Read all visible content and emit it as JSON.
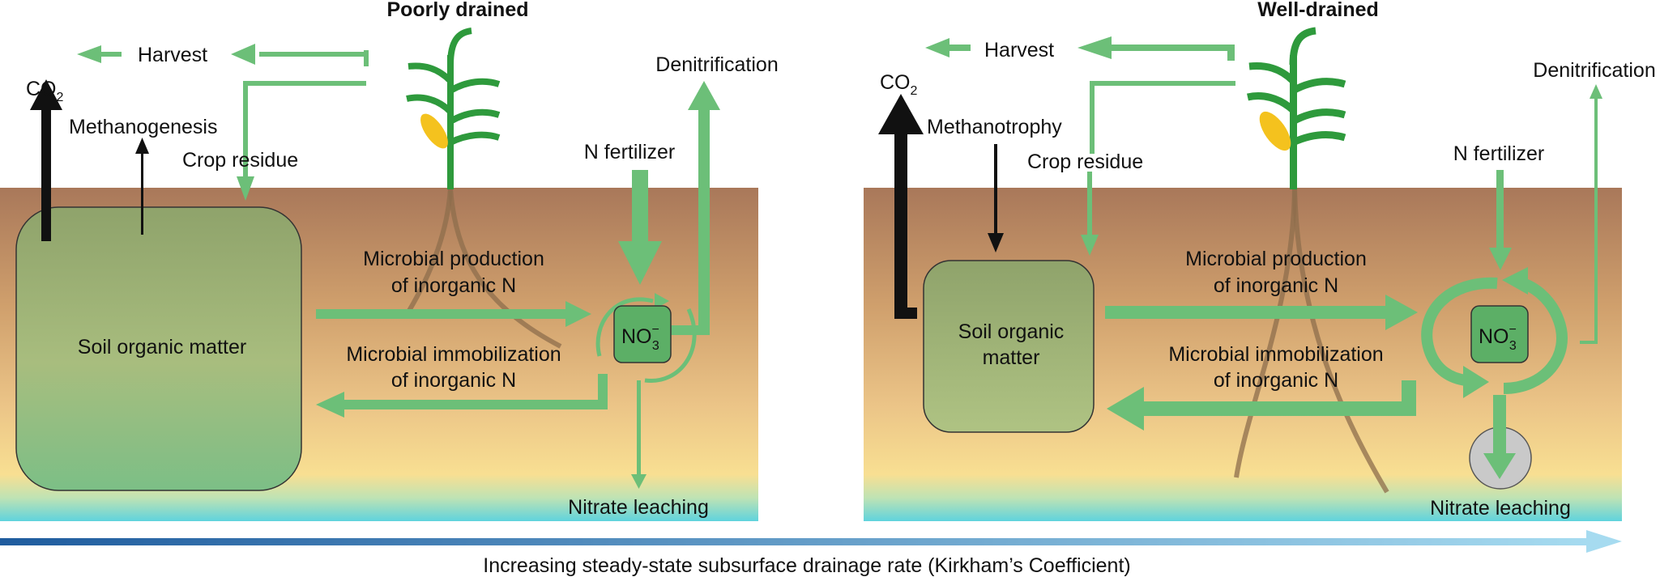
{
  "left_panel": {
    "title": "Poorly drained",
    "harvest": "Harvest",
    "co2": "CO",
    "co2_sub": "2",
    "process": "Methanogenesis",
    "crop_residue": "Crop residue",
    "denitrification": "Denitrification",
    "n_fertilizer": "N fertilizer",
    "soil_organic_matter": "Soil organic matter",
    "microbial_production": [
      "Microbial production",
      "of inorganic N"
    ],
    "microbial_immobilization": [
      "Microbial immobilization",
      "of inorganic N"
    ],
    "nitrate": "NO",
    "nitrate_sub": "3",
    "nitrate_sup": "−",
    "nitrate_leaching": "Nitrate leaching"
  },
  "right_panel": {
    "title": "Well-drained",
    "harvest": "Harvest",
    "co2": "CO",
    "co2_sub": "2",
    "process": "Methanotrophy",
    "crop_residue": "Crop residue",
    "denitrification": "Denitrification",
    "n_fertilizer": "N fertilizer",
    "soil_organic_matter": [
      "Soil organic",
      "matter"
    ],
    "microbial_production": [
      "Microbial production",
      "of inorganic N"
    ],
    "microbial_immobilization": [
      "Microbial immobilization",
      "of inorganic N"
    ],
    "nitrate": "NO",
    "nitrate_sub": "3",
    "nitrate_sup": "−",
    "nitrate_leaching": "Nitrate leaching"
  },
  "axis": {
    "label": "Increasing steady-state subsurface drainage rate (Kirkham’s Coefficient)"
  },
  "colors": {
    "flow_green": "#6cbf78",
    "plant_green": "#2e9a3c",
    "soil_top": "#a9785a",
    "soil_mid": "#e0b37a",
    "soil_low": "#f6dc8e",
    "water": "#5fd3dd",
    "som_box": "#9fb67b",
    "no3_box": "#5caf66",
    "axis_start": "#1f5c9e",
    "axis_end": "#9fd6ee",
    "grain": "#f4c21e"
  }
}
